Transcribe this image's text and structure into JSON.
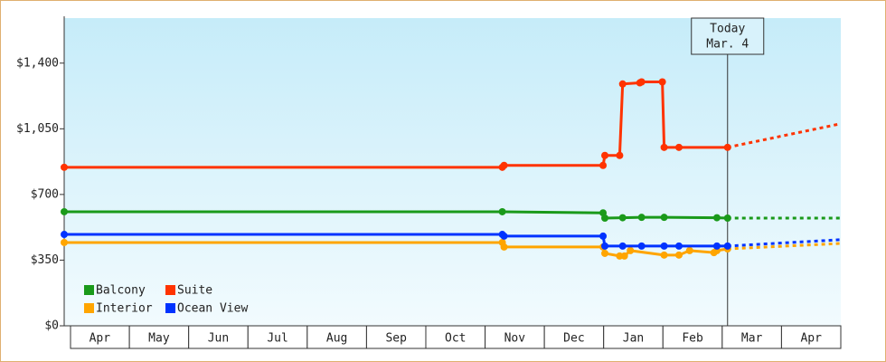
{
  "chart_data": {
    "type": "line",
    "ylim": [
      0,
      1640
    ],
    "yticks": [
      {
        "value": 0,
        "label": "$0"
      },
      {
        "value": 350,
        "label": "$350"
      },
      {
        "value": 700,
        "label": "$700"
      },
      {
        "value": 1050,
        "label": "$1,050"
      },
      {
        "value": 1400,
        "label": "$1,400"
      }
    ],
    "xlim": [
      -0.1,
      13
    ],
    "xticks": [
      {
        "value": 0.5,
        "label": "Apr"
      },
      {
        "value": 1.5,
        "label": "May"
      },
      {
        "value": 2.5,
        "label": "Jun"
      },
      {
        "value": 3.5,
        "label": "Jul"
      },
      {
        "value": 4.5,
        "label": "Aug"
      },
      {
        "value": 5.5,
        "label": "Sep"
      },
      {
        "value": 6.5,
        "label": "Oct"
      },
      {
        "value": 7.5,
        "label": "Nov"
      },
      {
        "value": 8.5,
        "label": "Dec"
      },
      {
        "value": 9.5,
        "label": "Jan"
      },
      {
        "value": 10.5,
        "label": "Feb"
      },
      {
        "value": 11.5,
        "label": "Mar"
      },
      {
        "value": 12.5,
        "label": "Apr"
      }
    ],
    "today": {
      "x": 11.09,
      "label": [
        "Today",
        "Mar. 4"
      ]
    },
    "series": [
      {
        "name": "Balcony",
        "color": "#1a9a1a",
        "x": [
          -0.1,
          7.29,
          8.99,
          9.02,
          9.32,
          9.64,
          10.02,
          10.91,
          11.09
        ],
        "values": [
          608,
          608,
          602,
          574,
          576,
          578,
          578,
          576,
          574
        ],
        "projection": {
          "x": [
            11.09,
            13
          ],
          "values": [
            574,
            574
          ]
        }
      },
      {
        "name": "Suite",
        "color": "#ff3300",
        "x": [
          -0.1,
          7.29,
          7.32,
          8.99,
          9.02,
          9.27,
          9.32,
          9.61,
          9.64,
          9.99,
          10.02,
          10.27,
          11.09
        ],
        "values": [
          845,
          845,
          855,
          855,
          908,
          908,
          1289,
          1295,
          1300,
          1300,
          951,
          951,
          951
        ],
        "projection": {
          "x": [
            11.09,
            13
          ],
          "values": [
            951,
            1077
          ]
        }
      },
      {
        "name": "Interior",
        "color": "#ffa500",
        "x": [
          -0.1,
          7.29,
          7.32,
          8.99,
          9.02,
          9.27,
          9.35,
          9.45,
          10.02,
          10.27,
          10.45,
          10.86,
          10.91,
          11.09
        ],
        "values": [
          444,
          444,
          420,
          420,
          386,
          372,
          372,
          401,
          377,
          377,
          401,
          390,
          401,
          410
        ],
        "projection": {
          "x": [
            11.09,
            13
          ],
          "values": [
            410,
            439
          ]
        }
      },
      {
        "name": "Ocean View",
        "color": "#0033ff",
        "x": [
          -0.1,
          7.29,
          7.32,
          8.99,
          9.02,
          9.32,
          9.64,
          10.02,
          10.27,
          10.91,
          11.09
        ],
        "values": [
          487,
          487,
          478,
          478,
          425,
          425,
          425,
          425,
          425,
          425,
          425
        ],
        "projection": {
          "x": [
            11.09,
            13
          ],
          "values": [
            425,
            459
          ]
        }
      }
    ]
  }
}
